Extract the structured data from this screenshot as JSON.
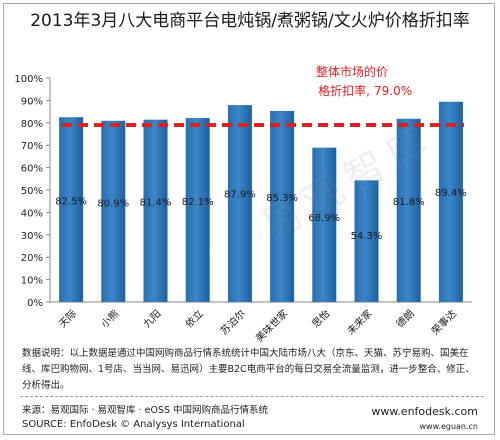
{
  "chart_data": {
    "type": "bar",
    "title": "2013年3月八大电商平台电炖锅/煮粥锅/文火炉价格折扣率",
    "categories": [
      "天际",
      "小熊",
      "九阳",
      "依立",
      "苏泊尔",
      "美味世家",
      "思怡",
      "未来家",
      "德朗",
      "荣事达"
    ],
    "values": [
      82.5,
      80.9,
      81.4,
      82.1,
      87.9,
      85.3,
      68.9,
      54.3,
      81.8,
      89.4
    ],
    "value_labels": [
      "82.5%",
      "80.9%",
      "81.4%",
      "82.1%",
      "87.9%",
      "85.3%",
      "68.9%",
      "54.3%",
      "81.8%",
      "89.4%"
    ],
    "ylim": [
      0,
      100
    ],
    "yticks": [
      "0%",
      "10%",
      "20%",
      "30%",
      "40%",
      "50%",
      "60%",
      "70%",
      "80%",
      "90%",
      "100%"
    ],
    "reference_line": {
      "value": 79.0,
      "label_line1": "整体市场的价",
      "label_line2": "格折扣率,",
      "value_label": "79.0%",
      "color": "#e02020"
    },
    "bar_color": "#3a86c8",
    "grid": false
  },
  "notes": "数据说明：以上数据是通过中国网购商品行情系统统计中国大陆市场八大（京东、天猫、苏宁易购、国美在线、库巴购物网、1号店、当当网、易迅网）主要B2C电商平台的每日交易全流量监测，进一步整合、修正、分析得出。",
  "source_cn": "来源：易观国际 · 易观智库 · eOSS 中国网购商品行情系统",
  "source_en": "SOURCE: EnfoDesk © Analysys International",
  "site_1": "www.enfodesk.com",
  "site_2": "www.eguan.cn",
  "watermark": "易观智库"
}
